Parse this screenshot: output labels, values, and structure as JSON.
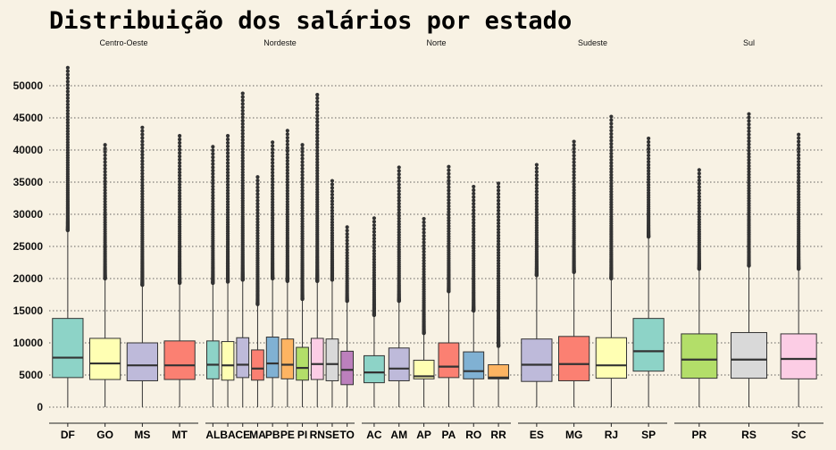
{
  "chart_data": {
    "type": "boxplot",
    "title": "Distribuição dos salários por estado",
    "xlabel": "",
    "ylabel": "",
    "ylim": [
      -2000,
      54000
    ],
    "yticks": [
      0,
      5000,
      10000,
      15000,
      20000,
      25000,
      30000,
      35000,
      40000,
      45000,
      50000
    ],
    "grid": "horizontal-dotted",
    "legend": "none",
    "facets": [
      {
        "name": "Centro-Oeste",
        "states": [
          {
            "state": "DF",
            "min": 0,
            "q1": 4600,
            "median": 7700,
            "q3": 13800,
            "whisker_high": 27500,
            "outlier_min": 27500,
            "outlier_max": 52800,
            "color": "#8dd3c7"
          },
          {
            "state": "GO",
            "min": 0,
            "q1": 4300,
            "median": 6800,
            "q3": 10700,
            "whisker_high": 20000,
            "outlier_min": 20000,
            "outlier_max": 40800,
            "color": "#ffffb3"
          },
          {
            "state": "MS",
            "min": 0,
            "q1": 4100,
            "median": 6500,
            "q3": 10000,
            "whisker_high": 19000,
            "outlier_min": 19000,
            "outlier_max": 43500,
            "color": "#bebada"
          },
          {
            "state": "MT",
            "min": 0,
            "q1": 4300,
            "median": 6500,
            "q3": 10300,
            "whisker_high": 19300,
            "outlier_min": 19300,
            "outlier_max": 42200,
            "color": "#fb8072"
          }
        ]
      },
      {
        "name": "Nordeste",
        "states": [
          {
            "state": "AL",
            "min": 0,
            "q1": 4400,
            "median": 6600,
            "q3": 10300,
            "whisker_high": 19300,
            "outlier_min": 19300,
            "outlier_max": 40500,
            "color": "#8dd3c7"
          },
          {
            "state": "BA",
            "min": 0,
            "q1": 4200,
            "median": 6500,
            "q3": 10200,
            "whisker_high": 19500,
            "outlier_min": 19500,
            "outlier_max": 42200,
            "color": "#ffffb3"
          },
          {
            "state": "CE",
            "min": 0,
            "q1": 4600,
            "median": 6600,
            "q3": 10800,
            "whisker_high": 19800,
            "outlier_min": 19800,
            "outlier_max": 48800,
            "color": "#bebada"
          },
          {
            "state": "MA",
            "min": 0,
            "q1": 4200,
            "median": 6000,
            "q3": 8900,
            "whisker_high": 16000,
            "outlier_min": 16000,
            "outlier_max": 35800,
            "color": "#fb8072"
          },
          {
            "state": "PB",
            "min": 0,
            "q1": 4600,
            "median": 6800,
            "q3": 10900,
            "whisker_high": 20000,
            "outlier_min": 20000,
            "outlier_max": 41200,
            "color": "#80b1d3"
          },
          {
            "state": "PE",
            "min": 0,
            "q1": 4400,
            "median": 6600,
            "q3": 10600,
            "whisker_high": 19600,
            "outlier_min": 19600,
            "outlier_max": 43000,
            "color": "#fdb462"
          },
          {
            "state": "PI",
            "min": 0,
            "q1": 4200,
            "median": 6100,
            "q3": 9300,
            "whisker_high": 16800,
            "outlier_min": 16800,
            "outlier_max": 40800,
            "color": "#b3de69"
          },
          {
            "state": "RN",
            "min": 0,
            "q1": 4300,
            "median": 6700,
            "q3": 10700,
            "whisker_high": 19600,
            "outlier_min": 19600,
            "outlier_max": 48600,
            "color": "#fccde5"
          },
          {
            "state": "SE",
            "min": 0,
            "q1": 4100,
            "median": 6700,
            "q3": 10600,
            "whisker_high": 19800,
            "outlier_min": 19800,
            "outlier_max": 35200,
            "color": "#d9d9d9"
          },
          {
            "state": "TO",
            "min": 0,
            "q1": 3500,
            "median": 5800,
            "q3": 8700,
            "whisker_high": 16500,
            "outlier_min": 16500,
            "outlier_max": 28000,
            "color": "#bc80bd"
          }
        ]
      },
      {
        "name": "Norte",
        "states": [
          {
            "state": "AC",
            "min": 0,
            "q1": 3800,
            "median": 5400,
            "q3": 8000,
            "whisker_high": 14300,
            "outlier_min": 14300,
            "outlier_max": 29400,
            "color": "#8dd3c7"
          },
          {
            "state": "AM",
            "min": 0,
            "q1": 4100,
            "median": 6000,
            "q3": 9200,
            "whisker_high": 16500,
            "outlier_min": 16500,
            "outlier_max": 37300,
            "color": "#bebada"
          },
          {
            "state": "AP",
            "min": 0,
            "q1": 4400,
            "median": 4800,
            "q3": 7300,
            "whisker_high": 11500,
            "outlier_min": 11500,
            "outlier_max": 29300,
            "color": "#ffffb3"
          },
          {
            "state": "PA",
            "min": 0,
            "q1": 4600,
            "median": 6300,
            "q3": 10000,
            "whisker_high": 18000,
            "outlier_min": 18000,
            "outlier_max": 37400,
            "color": "#fb8072"
          },
          {
            "state": "RO",
            "min": 0,
            "q1": 4400,
            "median": 5600,
            "q3": 8600,
            "whisker_high": 15000,
            "outlier_min": 15000,
            "outlier_max": 34300,
            "color": "#80b1d3"
          },
          {
            "state": "RR",
            "min": 0,
            "q1": 4400,
            "median": 4600,
            "q3": 6600,
            "whisker_high": 9500,
            "outlier_min": 9500,
            "outlier_max": 34800,
            "color": "#fdb462"
          }
        ]
      },
      {
        "name": "Sudeste",
        "states": [
          {
            "state": "ES",
            "min": 0,
            "q1": 4000,
            "median": 6600,
            "q3": 10600,
            "whisker_high": 20500,
            "outlier_min": 20500,
            "outlier_max": 37700,
            "color": "#bebada"
          },
          {
            "state": "MG",
            "min": 0,
            "q1": 4100,
            "median": 6700,
            "q3": 11000,
            "whisker_high": 21000,
            "outlier_min": 21000,
            "outlier_max": 41300,
            "color": "#fb8072"
          },
          {
            "state": "RJ",
            "min": 0,
            "q1": 4500,
            "median": 6500,
            "q3": 10800,
            "whisker_high": 20000,
            "outlier_min": 20000,
            "outlier_max": 45200,
            "color": "#ffffb3"
          },
          {
            "state": "SP",
            "min": 0,
            "q1": 5600,
            "median": 8700,
            "q3": 13800,
            "whisker_high": 26500,
            "outlier_min": 26500,
            "outlier_max": 41800,
            "color": "#8dd3c7"
          }
        ]
      },
      {
        "name": "Sul",
        "states": [
          {
            "state": "PR",
            "min": 0,
            "q1": 4500,
            "median": 7400,
            "q3": 11400,
            "whisker_high": 21500,
            "outlier_min": 21500,
            "outlier_max": 36900,
            "color": "#b3de69"
          },
          {
            "state": "RS",
            "min": 0,
            "q1": 4500,
            "median": 7400,
            "q3": 11600,
            "whisker_high": 22000,
            "outlier_min": 22000,
            "outlier_max": 45600,
            "color": "#d9d9d9"
          },
          {
            "state": "SC",
            "min": 0,
            "q1": 4400,
            "median": 7500,
            "q3": 11400,
            "whisker_high": 21500,
            "outlier_min": 21500,
            "outlier_max": 42400,
            "color": "#fccde5"
          }
        ]
      }
    ]
  }
}
